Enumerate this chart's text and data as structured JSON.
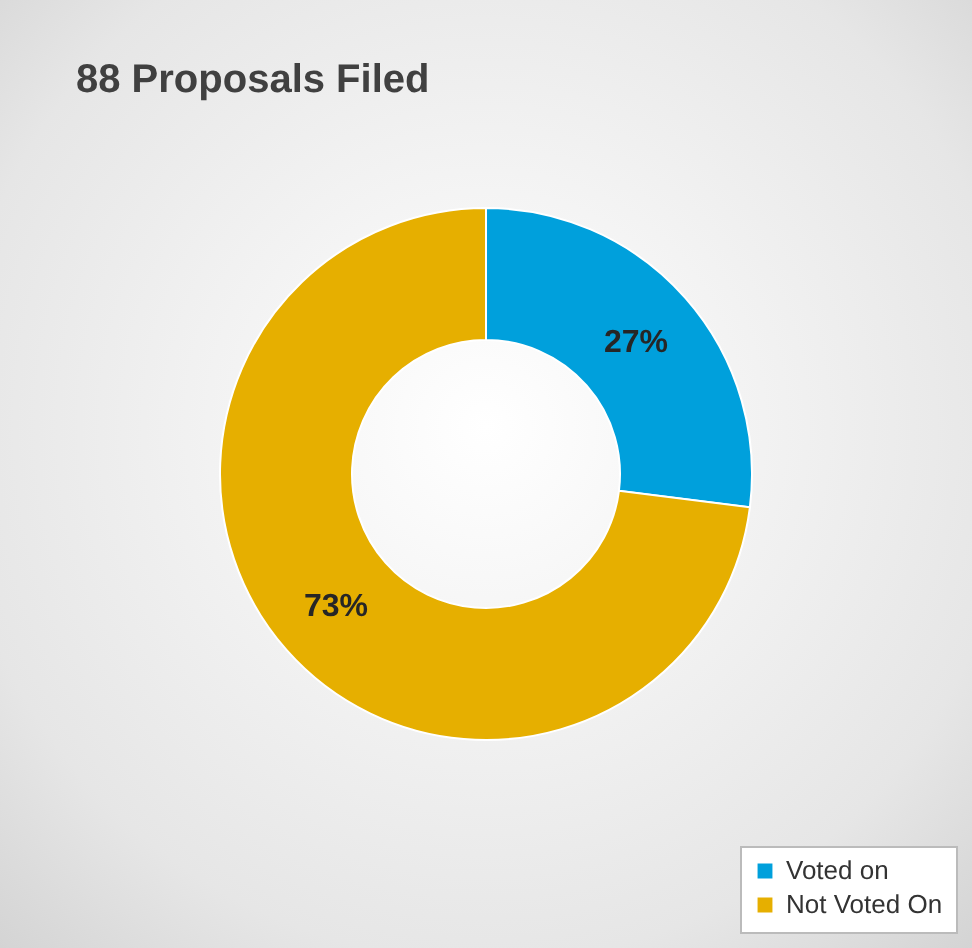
{
  "chart_data": {
    "type": "donut",
    "title": "88 Proposals Filed",
    "categories": [
      "Voted on",
      "Not Voted On"
    ],
    "values": [
      27,
      73
    ],
    "colors": [
      "#00a0dc",
      "#e6af00"
    ],
    "value_labels": [
      "27%",
      "73%"
    ],
    "legend": "bottom right"
  }
}
